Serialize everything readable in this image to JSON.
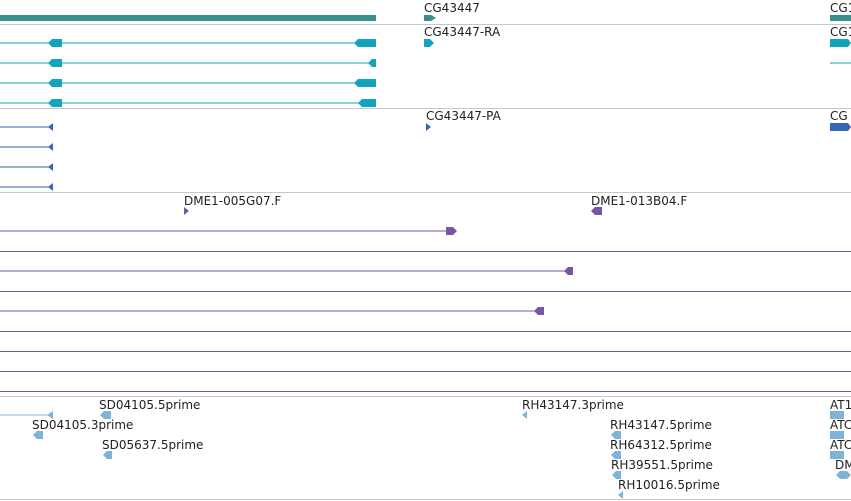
{
  "colors": {
    "gene": "#3a8e8e",
    "transcript_rna": "#12a3bd",
    "transcript_protein": "#3366bb",
    "cdna_alignment": "#7a55a5",
    "est_alignment": "#7fb4d6",
    "track_divider": "#c8c8c8",
    "label_text": "#222222"
  },
  "tracks": {
    "gene": {
      "features": [
        {
          "label": "CG43447"
        },
        {
          "label": "CG1"
        }
      ]
    },
    "transcripts_rna": {
      "features": [
        {
          "label": "CG43447-RA"
        },
        {
          "label": "CG1"
        }
      ]
    },
    "transcripts_protein": {
      "features": [
        {
          "label": "CG43447-PA"
        },
        {
          "label": "CG"
        }
      ]
    },
    "cdna": {
      "features": [
        {
          "label": "DME1-005G07.F"
        },
        {
          "label": "DME1-013B04.F"
        }
      ]
    },
    "est": {
      "features": [
        {
          "label": "SD04105.5prime"
        },
        {
          "label": "SD04105.3prime"
        },
        {
          "label": "SD05637.5prime"
        },
        {
          "label": "RH43147.3prime"
        },
        {
          "label": "RH43147.5prime"
        },
        {
          "label": "RH64312.5prime"
        },
        {
          "label": "RH39551.5prime"
        },
        {
          "label": "RH10016.5prime"
        },
        {
          "label": "AT1"
        },
        {
          "label": "ATC"
        },
        {
          "label": "ATC"
        },
        {
          "label": "DM"
        }
      ]
    }
  }
}
